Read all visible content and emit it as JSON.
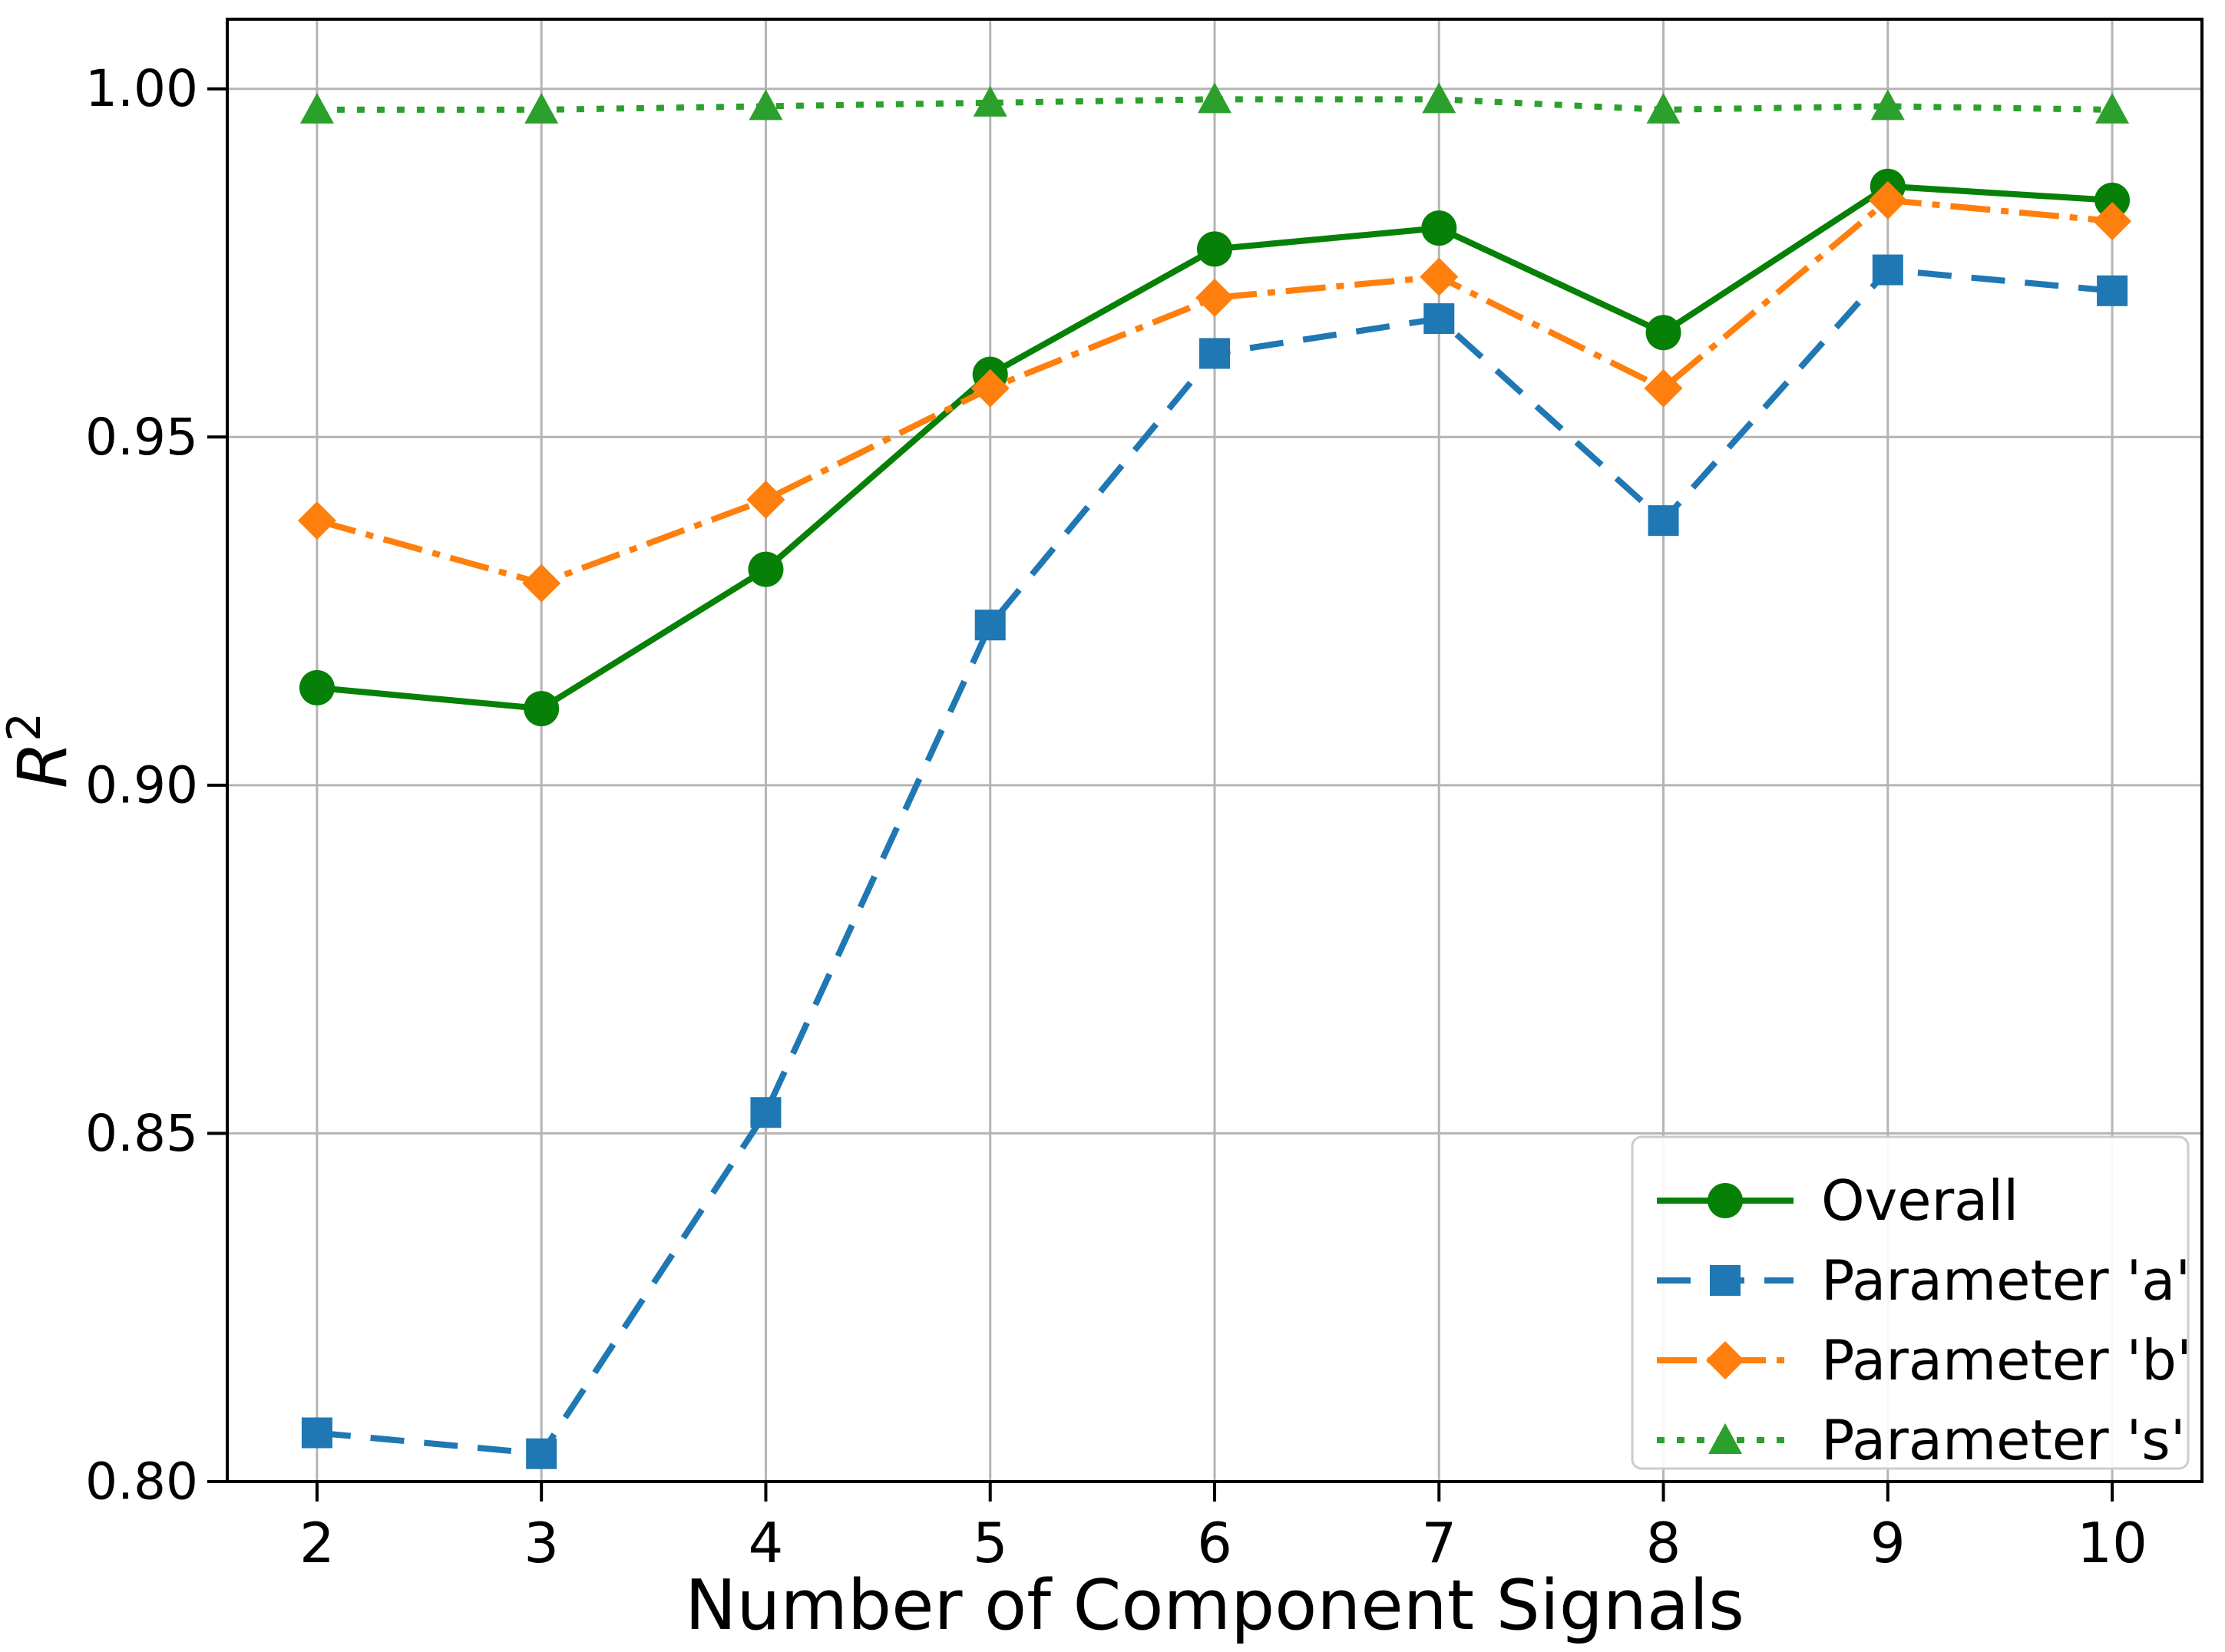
{
  "chart_data": {
    "type": "line",
    "title": "",
    "xlabel": "Number of Component Signals",
    "ylabel": "R²",
    "x": [
      2,
      3,
      4,
      5,
      6,
      7,
      8,
      9,
      10
    ],
    "xlim": [
      1.6,
      10.4
    ],
    "ylim": [
      0.8,
      1.01
    ],
    "grid": true,
    "grid_color": "#b4b4b4",
    "legend_position": "lower right",
    "xticks": {
      "values": [
        2,
        3,
        4,
        5,
        6,
        7,
        8,
        9,
        10
      ],
      "labels": [
        "2",
        "3",
        "4",
        "5",
        "6",
        "7",
        "8",
        "9",
        "10"
      ]
    },
    "yticks": {
      "values": [
        1.0,
        0.95,
        0.9,
        0.85,
        0.8
      ],
      "labels": [
        "1.00",
        "0.95",
        "0.90",
        "0.85",
        "0.80"
      ]
    },
    "series": [
      {
        "name": "Overall",
        "color": "#068006",
        "linestyle": "solid",
        "marker": "circle",
        "values": [
          0.914,
          0.911,
          0.931,
          0.959,
          0.977,
          0.98,
          0.965,
          0.986,
          0.984
        ]
      },
      {
        "name": "Parameter 'a'",
        "color": "#1f77b4",
        "linestyle": "dashed",
        "marker": "square",
        "values": [
          0.807,
          0.804,
          0.853,
          0.923,
          0.962,
          0.967,
          0.938,
          0.974,
          0.971
        ]
      },
      {
        "name": "Parameter 'b'",
        "color": "#ff7f0e",
        "linestyle": "dashdot",
        "marker": "diamond",
        "values": [
          0.938,
          0.929,
          0.941,
          0.957,
          0.97,
          0.973,
          0.957,
          0.984,
          0.981
        ]
      },
      {
        "name": "Parameter 's'",
        "color": "#2ca02c",
        "linestyle": "dotted",
        "marker": "triangle",
        "values": [
          0.997,
          0.997,
          0.9975,
          0.998,
          0.9985,
          0.9985,
          0.997,
          0.9975,
          0.997
        ]
      }
    ]
  }
}
